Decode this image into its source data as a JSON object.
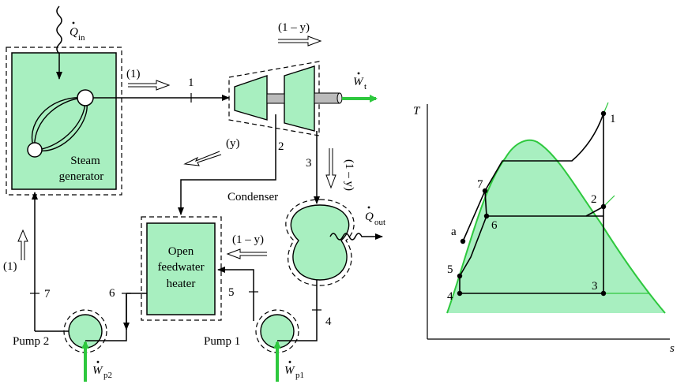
{
  "colors": {
    "component_fill": "#a8efc0",
    "dome_fill": "#a8efc0",
    "green_line": "#2ec83e",
    "arrow_green": "#2ec83e",
    "line": "#000000"
  },
  "labels": {
    "q_in_sym": "Q",
    "q_in_sub": "in",
    "one": "(1)",
    "state_1": "1",
    "one_minus_y_top": "(1 – y)",
    "w_t_sym": "W",
    "w_t_sub": "t",
    "y": "(y)",
    "state_2": "2",
    "state_3": "3",
    "one_minus_y_vert": "(1 – y)",
    "condenser": "Condenser",
    "q_out_sym": "Q",
    "q_out_sub": "out",
    "steam_1": "Steam",
    "steam_2": "generator",
    "one_left": "(1)",
    "state_7": "7",
    "state_6": "6",
    "state_5": "5",
    "state_4": "4",
    "fwh_1": "Open",
    "fwh_2": "feedwater",
    "fwh_3": "heater",
    "one_minus_y_mid": "(1 – y)",
    "pump2": "Pump 2",
    "pump1": "Pump 1",
    "w_p2_sym": "W",
    "w_p2_sub": "p2",
    "w_p1_sym": "W",
    "w_p1_sub": "p1"
  },
  "ts": {
    "axis_T": "T",
    "axis_s": "s",
    "pt_1": "1",
    "pt_2": "2",
    "pt_3": "3",
    "pt_4": "4",
    "pt_5": "5",
    "pt_6": "6",
    "pt_7": "7",
    "pt_a": "a"
  }
}
